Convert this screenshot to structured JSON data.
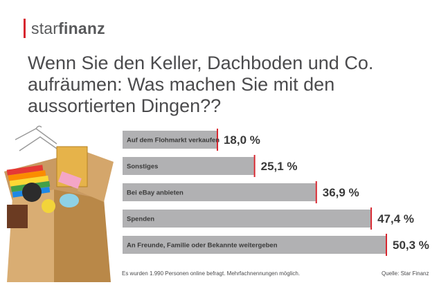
{
  "brand": {
    "prefix": "star",
    "suffix": "finanz"
  },
  "title": "Wenn Sie den Keller, Dachboden und Co. aufräumen: Was machen Sie mit den aussortierten Dingen??",
  "footer": {
    "note": "Es wurden 1.990 Personen online befragt. Mehrfachnennungen möglich.",
    "source": "Quelle: Star Finanz"
  },
  "colors": {
    "bar": "#b1b1b3",
    "accent": "#d7262f",
    "text": "#3a3a3a"
  },
  "chart_data": {
    "type": "bar",
    "orientation": "horizontal",
    "categories": [
      "Auf dem Flohmarkt verkaufen",
      "Sonstiges",
      "Bei eBay anbieten",
      "Spenden",
      "An Freunde, Familie oder Bekannte weitergeben"
    ],
    "values": [
      18.0,
      25.1,
      36.9,
      47.4,
      50.3
    ],
    "value_labels": [
      "18,0 %",
      "25,1 %",
      "36,9 %",
      "47,4 %",
      "50,3 %"
    ],
    "unit": "%",
    "xlim": [
      0,
      50.3
    ],
    "grid": false,
    "legend": "none"
  }
}
